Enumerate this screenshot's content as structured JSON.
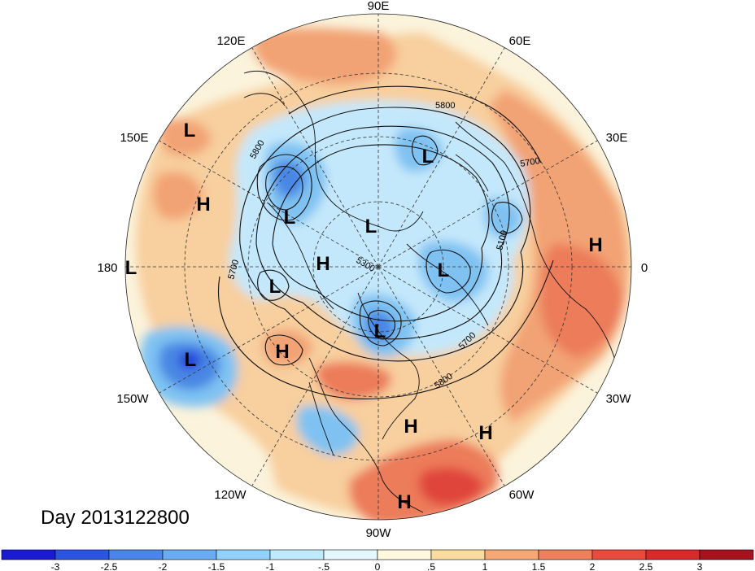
{
  "title": "Day 2013122800",
  "longitude_labels": [
    {
      "text": "90E",
      "lon": 90
    },
    {
      "text": "60E",
      "lon": 60
    },
    {
      "text": "30E",
      "lon": 30
    },
    {
      "text": "0",
      "lon": 0
    },
    {
      "text": "30W",
      "lon": -30
    },
    {
      "text": "60W",
      "lon": -60
    },
    {
      "text": "90W",
      "lon": -90
    },
    {
      "text": "120W",
      "lon": -120
    },
    {
      "text": "150W",
      "lon": -150
    },
    {
      "text": "180",
      "lon": 180
    },
    {
      "text": "150E",
      "lon": 150
    },
    {
      "text": "120E",
      "lon": 120
    }
  ],
  "pressure_centers": [
    "L",
    "L",
    "L",
    "L",
    "L",
    "L",
    "L",
    "L",
    "L",
    "H",
    "H",
    "H",
    "H",
    "H",
    "H",
    "H"
  ],
  "contour_labels": [
    "5800",
    "5800",
    "5700",
    "5300",
    "5700",
    "5100",
    "5800",
    "5700"
  ],
  "colorbar": {
    "ticks": [
      "-3",
      "-2.5",
      "-2",
      "-1.5",
      "-1",
      "-.5",
      "0",
      ".5",
      "1",
      "1.5",
      "2",
      "2.5",
      "3"
    ],
    "colors": [
      "#1a1ad0",
      "#2a55e0",
      "#4a85ec",
      "#6aacf4",
      "#92d2fa",
      "#bfe9fd",
      "#e4f7fd",
      "#fff8df",
      "#fbdca0",
      "#f5a873",
      "#f07f5b",
      "#e84a3c",
      "#d72b2b",
      "#a8121e"
    ]
  },
  "map_colors": {
    "ocean_neutral": "#fbf3dc",
    "light_orange": "#f8cf9e",
    "orange": "#f2a374",
    "red_orange": "#ec7b5a",
    "red": "#e0443a",
    "light_blue": "#c4e8fb",
    "mid_blue": "#7fc2f2",
    "blue": "#4a87e4",
    "dark_blue": "#2340d8"
  }
}
